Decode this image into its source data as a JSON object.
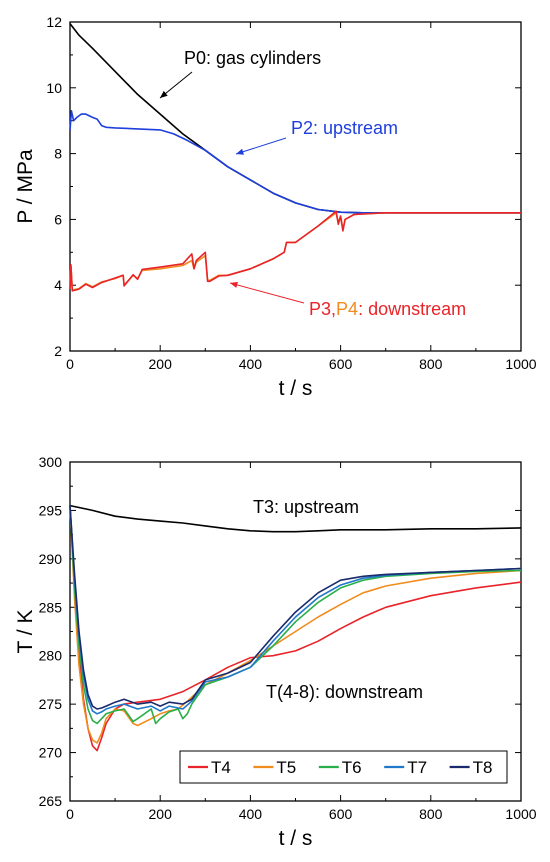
{
  "chart_data": [
    {
      "type": "line",
      "title": "",
      "xlabel": "t / s",
      "ylabel": "P / MPa",
      "xlim": [
        0,
        1000
      ],
      "ylim": [
        2,
        12
      ],
      "xticks": [
        0,
        200,
        400,
        600,
        800,
        1000
      ],
      "yticks": [
        2,
        4,
        6,
        8,
        10,
        12
      ],
      "grid": false,
      "legend": "none",
      "series": [
        {
          "color": "#000000",
          "x": [
            0,
            20,
            50,
            100,
            150,
            200,
            250,
            300,
            350,
            400,
            450,
            500,
            550,
            600,
            650,
            700,
            800,
            900,
            1000
          ],
          "y": [
            11.95,
            11.6,
            11.2,
            10.5,
            9.8,
            9.2,
            8.6,
            8.1,
            7.6,
            7.2,
            6.8,
            6.5,
            6.3,
            6.22,
            6.2,
            6.2,
            6.2,
            6.2,
            6.2
          ]
        },
        {
          "color": "#1f3fdc",
          "x": [
            0,
            3,
            8,
            15,
            25,
            35,
            50,
            60,
            70,
            80,
            100,
            150,
            200,
            230,
            260,
            300,
            350,
            400,
            450,
            500,
            550,
            600,
            650,
            700,
            800,
            900,
            1000
          ],
          "y": [
            8.7,
            9.3,
            9.0,
            9.1,
            9.2,
            9.2,
            9.1,
            9.05,
            8.85,
            8.8,
            8.78,
            8.75,
            8.72,
            8.6,
            8.4,
            8.1,
            7.6,
            7.2,
            6.8,
            6.5,
            6.3,
            6.22,
            6.2,
            6.2,
            6.2,
            6.2,
            6.2
          ]
        },
        {
          "color": "#f08c1e",
          "x": [
            0,
            2,
            5,
            20,
            35,
            50,
            70,
            100,
            118,
            120,
            140,
            150,
            160,
            200,
            250,
            270,
            275,
            280,
            300,
            305,
            310,
            330,
            350,
            400,
            450,
            475,
            480,
            500,
            550,
            590,
            595,
            600,
            605,
            610,
            630,
            700,
            800,
            900,
            1000
          ],
          "y": [
            3.9,
            4.6,
            3.85,
            3.9,
            4.05,
            3.95,
            4.1,
            4.2,
            4.3,
            4.0,
            4.3,
            4.2,
            4.45,
            4.5,
            4.6,
            4.75,
            4.5,
            4.7,
            4.9,
            4.15,
            4.15,
            4.3,
            4.3,
            4.5,
            4.8,
            5.0,
            5.3,
            5.3,
            5.8,
            6.2,
            5.9,
            6.1,
            5.7,
            6.0,
            6.15,
            6.2,
            6.2,
            6.2,
            6.2
          ]
        },
        {
          "color": "#e8242a",
          "x": [
            0,
            2,
            5,
            20,
            35,
            50,
            70,
            100,
            118,
            120,
            140,
            150,
            160,
            200,
            250,
            270,
            275,
            280,
            300,
            305,
            310,
            330,
            350,
            400,
            450,
            475,
            480,
            500,
            550,
            590,
            595,
            600,
            605,
            610,
            630,
            700,
            800,
            900,
            1000
          ],
          "y": [
            3.88,
            4.62,
            3.83,
            3.88,
            4.03,
            3.93,
            4.08,
            4.22,
            4.3,
            3.98,
            4.32,
            4.18,
            4.48,
            4.55,
            4.65,
            4.95,
            4.5,
            4.75,
            5.0,
            4.12,
            4.12,
            4.28,
            4.3,
            4.5,
            4.8,
            5.0,
            5.3,
            5.3,
            5.8,
            6.25,
            5.85,
            6.1,
            5.65,
            6.0,
            6.15,
            6.2,
            6.2,
            6.2,
            6.2
          ]
        }
      ],
      "annotations": [
        {
          "text": "P0: gas cylinders",
          "color": "#000000"
        },
        {
          "text": "P2: upstream",
          "color": "#1f3fdc"
        },
        {
          "parts": [
            {
              "text": "P3",
              "color": "#e8242a"
            },
            {
              "text": ",",
              "color": "#e8242a"
            },
            {
              "text": "P4",
              "color": "#f08c1e"
            },
            {
              "text": ": downstream",
              "color": "#e8242a"
            }
          ]
        }
      ]
    },
    {
      "type": "line",
      "title": "",
      "xlabel": "t / s",
      "ylabel": "T / K",
      "xlim": [
        0,
        1000
      ],
      "ylim": [
        265,
        300
      ],
      "xticks": [
        0,
        200,
        400,
        600,
        800,
        1000
      ],
      "yticks": [
        265,
        270,
        275,
        280,
        285,
        290,
        295,
        300
      ],
      "grid": false,
      "legend": "bottom-right",
      "series": [
        {
          "name": "",
          "color": "#000000",
          "x": [
            0,
            20,
            50,
            100,
            150,
            200,
            250,
            300,
            350,
            400,
            450,
            500,
            550,
            600,
            700,
            800,
            900,
            1000
          ],
          "y": [
            295.5,
            295.3,
            295.0,
            294.4,
            294.1,
            293.9,
            293.7,
            293.4,
            293.1,
            292.9,
            292.8,
            292.8,
            292.9,
            293.0,
            293.0,
            293.1,
            293.1,
            293.2
          ]
        },
        {
          "name": "T4",
          "color": "#e8242a",
          "x": [
            0,
            10,
            20,
            30,
            40,
            50,
            60,
            70,
            80,
            100,
            120,
            150,
            200,
            250,
            300,
            350,
            400,
            450,
            500,
            550,
            600,
            650,
            700,
            800,
            900,
            1000
          ],
          "y": [
            295.5,
            287,
            280,
            275.5,
            272.5,
            270.7,
            270.2,
            271.5,
            273,
            274.5,
            275,
            275.2,
            275.5,
            276.3,
            277.5,
            278.8,
            279.8,
            280.0,
            280.5,
            281.5,
            282.8,
            284.0,
            285.0,
            286.2,
            287.0,
            287.6
          ]
        },
        {
          "name": "T5",
          "color": "#f08c1e",
          "x": [
            0,
            10,
            20,
            30,
            40,
            50,
            60,
            70,
            80,
            100,
            120,
            140,
            150,
            180,
            200,
            220,
            240,
            260,
            300,
            350,
            400,
            450,
            500,
            550,
            600,
            650,
            700,
            800,
            900,
            1000
          ],
          "y": [
            295.5,
            286,
            279,
            275,
            272.5,
            271.3,
            271.0,
            272,
            273.5,
            274.5,
            274.3,
            273.0,
            272.8,
            273.5,
            274.0,
            274.3,
            274.5,
            275.3,
            277.0,
            278.2,
            279.5,
            281.0,
            282.5,
            284.0,
            285.3,
            286.5,
            287.2,
            288.0,
            288.5,
            288.8
          ]
        },
        {
          "name": "T6",
          "color": "#2aae4a",
          "x": [
            0,
            10,
            20,
            30,
            40,
            50,
            60,
            70,
            80,
            100,
            120,
            140,
            150,
            180,
            190,
            200,
            220,
            240,
            250,
            260,
            270,
            300,
            350,
            400,
            450,
            500,
            550,
            600,
            650,
            700,
            800,
            900,
            1000
          ],
          "y": [
            295.5,
            287,
            281,
            277,
            274.5,
            273.3,
            273.0,
            273.5,
            274.0,
            274.3,
            274.5,
            273.2,
            273.5,
            274.5,
            273.0,
            273.5,
            274.2,
            274.5,
            273.5,
            274.0,
            275.0,
            277.0,
            277.8,
            278.8,
            281.0,
            283.5,
            285.5,
            287.0,
            287.8,
            288.2,
            288.5,
            288.7,
            288.8
          ]
        },
        {
          "name": "T7",
          "color": "#1f78c8",
          "x": [
            0,
            10,
            20,
            30,
            40,
            50,
            60,
            70,
            80,
            100,
            120,
            150,
            180,
            200,
            220,
            250,
            270,
            300,
            350,
            400,
            450,
            500,
            550,
            600,
            650,
            700,
            800,
            900,
            1000
          ],
          "y": [
            295.5,
            288,
            282,
            278,
            275.5,
            274.3,
            274.0,
            274.2,
            274.5,
            274.8,
            275.0,
            274.5,
            274.8,
            274.3,
            274.8,
            274.5,
            275.3,
            277.3,
            277.8,
            278.8,
            281.5,
            284.0,
            286.0,
            287.3,
            288.0,
            288.3,
            288.6,
            288.8,
            289.0
          ]
        },
        {
          "name": "T8",
          "color": "#1a2a6c",
          "x": [
            0,
            10,
            20,
            30,
            40,
            50,
            60,
            70,
            80,
            100,
            120,
            150,
            180,
            200,
            220,
            250,
            270,
            300,
            350,
            400,
            450,
            500,
            550,
            600,
            650,
            700,
            800,
            900,
            1000
          ],
          "y": [
            295.5,
            288.5,
            282.5,
            278.5,
            276,
            274.8,
            274.5,
            274.6,
            274.8,
            275.2,
            275.5,
            275.0,
            275.2,
            274.8,
            275.2,
            275.0,
            275.5,
            277.5,
            278.2,
            279.3,
            282.0,
            284.5,
            286.5,
            287.8,
            288.2,
            288.4,
            288.6,
            288.8,
            289.0
          ]
        }
      ],
      "annotations": [
        {
          "text": "T3: upstream",
          "color": "#000000"
        },
        {
          "text": "T(4-8): downstream",
          "color": "#000000"
        }
      ]
    }
  ]
}
